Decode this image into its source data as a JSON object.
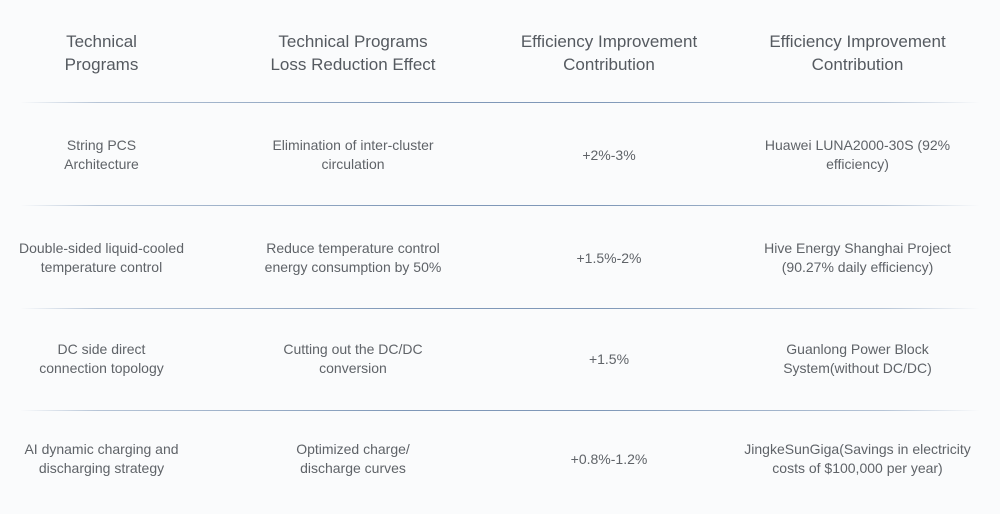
{
  "table": {
    "headers": [
      "Technical\nPrograms",
      "Technical Programs\nLoss Reduction Effect",
      "Efficiency Improvement\nContribution",
      "Efficiency Improvement\nContribution"
    ],
    "rows": [
      [
        "String PCS\nArchitecture",
        "Elimination of inter-cluster\ncirculation",
        "+2%-3%",
        "Huawei LUNA2000-30S (92%\nefficiency)"
      ],
      [
        "Double-sided liquid-cooled\ntemperature control",
        "Reduce temperature control\nenergy consumption by 50%",
        "+1.5%-2%",
        "Hive Energy Shanghai Project\n(90.27% daily efficiency)"
      ],
      [
        "DC side direct\nconnection topology",
        "Cutting out the DC/DC\nconversion",
        "+1.5%",
        "Guanlong Power Block\nSystem(without DC/DC)"
      ],
      [
        "AI dynamic charging and\ndischarging strategy",
        "Optimized charge/\ndischarge curves",
        "+0.8%-1.2%",
        "JingkeSunGiga(Savings in electricity\ncosts of $100,000 per year)"
      ]
    ]
  },
  "colors": {
    "background": "#fafbfc",
    "text": "#5f6368",
    "divider": "#7f98b8"
  }
}
